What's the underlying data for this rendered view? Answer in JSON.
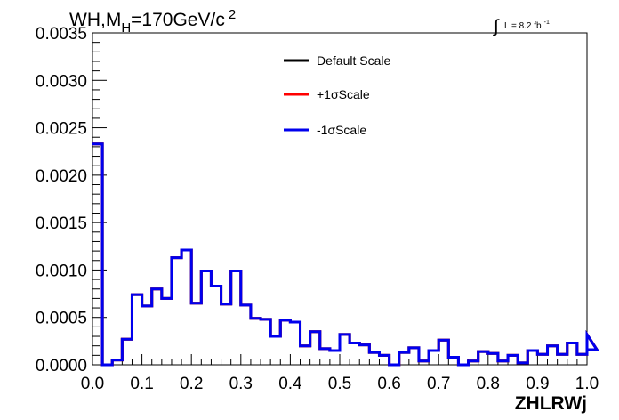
{
  "chart_data": {
    "type": "line",
    "title_main": "WH,M",
    "title_sub": "H",
    "title_rest": "=170GeV/c",
    "title_sup": "2",
    "xlabel": "ZHLRWj",
    "ylabel": "",
    "xlim": [
      0.0,
      1.0
    ],
    "ylim": [
      0.0,
      0.0035
    ],
    "x_ticks": [
      "0.0",
      "0.1",
      "0.2",
      "0.3",
      "0.4",
      "0.5",
      "0.6",
      "0.7",
      "0.8",
      "0.9",
      "1.0"
    ],
    "y_ticks": [
      "0.0000",
      "0.0005",
      "0.0010",
      "0.0015",
      "0.0020",
      "0.0025",
      "0.0030",
      "0.0035"
    ],
    "lumi": {
      "integral": "∫",
      "text": "L = 8.2 fb",
      "sup": "-1"
    },
    "legend_position": "top-center",
    "bin_edges_start": 0.0,
    "bin_width": 0.02,
    "series": [
      {
        "name": "Default Scale",
        "color": "#000000",
        "values": [
          0.00233,
          0.0,
          5e-05,
          0.00027,
          0.00074,
          0.00062,
          0.0008,
          0.0007,
          0.00113,
          0.00121,
          0.00065,
          0.00099,
          0.00083,
          0.00064,
          0.00099,
          0.00063,
          0.00049,
          0.00048,
          0.0003,
          0.00047,
          0.00045,
          0.0002,
          0.00035,
          0.00017,
          0.00015,
          0.00032,
          0.00023,
          0.00021,
          0.00013,
          0.0001,
          0.0,
          0.00013,
          0.00018,
          4e-05,
          0.00015,
          0.00026,
          8e-05,
          0.0,
          4e-05,
          0.00014,
          0.00012,
          4e-05,
          0.0001,
          2e-05,
          0.00015,
          0.00011,
          0.0002,
          0.00011,
          0.00023,
          0.00011,
          0.00032,
          0.00016
        ]
      },
      {
        "name": "+1σScale",
        "color": "#ff0000",
        "values": [
          0.00233,
          0.0,
          5e-05,
          0.00027,
          0.00074,
          0.00062,
          0.0008,
          0.0007,
          0.00113,
          0.00121,
          0.00065,
          0.00099,
          0.00083,
          0.00064,
          0.00099,
          0.00063,
          0.00049,
          0.00048,
          0.0003,
          0.00047,
          0.00045,
          0.0002,
          0.00035,
          0.00017,
          0.00015,
          0.00032,
          0.00023,
          0.00021,
          0.00013,
          0.0001,
          0.0,
          0.00013,
          0.00018,
          4e-05,
          0.00015,
          0.00026,
          8e-05,
          0.0,
          4e-05,
          0.00014,
          0.00012,
          4e-05,
          0.0001,
          2e-05,
          0.00015,
          0.00011,
          0.0002,
          0.00011,
          0.00023,
          0.00011,
          0.00032,
          0.00016
        ]
      },
      {
        "name": "-1σScale",
        "color": "#0000ee",
        "values": [
          0.00233,
          0.0,
          5e-05,
          0.00027,
          0.00074,
          0.00062,
          0.0008,
          0.0007,
          0.00113,
          0.00121,
          0.00065,
          0.00099,
          0.00083,
          0.00064,
          0.00099,
          0.00063,
          0.00049,
          0.00048,
          0.0003,
          0.00047,
          0.00045,
          0.0002,
          0.00035,
          0.00017,
          0.00015,
          0.00032,
          0.00023,
          0.00021,
          0.00013,
          0.0001,
          0.0,
          0.00013,
          0.00018,
          4e-05,
          0.00015,
          0.00026,
          8e-05,
          0.0,
          4e-05,
          0.00014,
          0.00012,
          4e-05,
          0.0001,
          2e-05,
          0.00015,
          0.00011,
          0.0002,
          0.00011,
          0.00023,
          0.00011,
          0.00032,
          0.00016
        ]
      }
    ]
  }
}
